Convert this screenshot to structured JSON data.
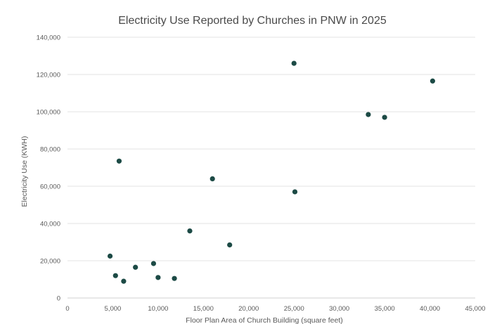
{
  "chart_data": {
    "type": "scatter",
    "title": "Electricity Use Reported by Churches in PNW in 2025",
    "xlabel": "Floor Plan Area of Church Building (square feet)",
    "ylabel": "Electricity Use (KWH)",
    "xlim": [
      0,
      45000
    ],
    "ylim": [
      0,
      140000
    ],
    "x_ticks": [
      0,
      5000,
      10000,
      15000,
      20000,
      25000,
      30000,
      35000,
      40000,
      45000
    ],
    "y_ticks": [
      0,
      20000,
      40000,
      60000,
      80000,
      100000,
      120000,
      140000
    ],
    "x_tick_labels": [
      "0",
      "5,000",
      "10,000",
      "15,000",
      "20,000",
      "25,000",
      "30,000",
      "35,000",
      "40,000",
      "45,000"
    ],
    "y_tick_labels": [
      "0",
      "20,000",
      "40,000",
      "60,000",
      "80,000",
      "100,000",
      "120,000",
      "140,000"
    ],
    "grid": "horizontal",
    "legend": "none",
    "marker_color": "#1c4a45",
    "points": [
      {
        "x": 4700,
        "y": 22500
      },
      {
        "x": 5300,
        "y": 12000
      },
      {
        "x": 5700,
        "y": 73500
      },
      {
        "x": 6200,
        "y": 9000
      },
      {
        "x": 7500,
        "y": 16500
      },
      {
        "x": 9500,
        "y": 18500
      },
      {
        "x": 10000,
        "y": 11000
      },
      {
        "x": 11800,
        "y": 10500
      },
      {
        "x": 13500,
        "y": 36000
      },
      {
        "x": 16000,
        "y": 64000
      },
      {
        "x": 17900,
        "y": 28500
      },
      {
        "x": 25000,
        "y": 126000
      },
      {
        "x": 25100,
        "y": 57000
      },
      {
        "x": 33200,
        "y": 98500
      },
      {
        "x": 35000,
        "y": 97000
      },
      {
        "x": 40300,
        "y": 116500
      }
    ]
  }
}
